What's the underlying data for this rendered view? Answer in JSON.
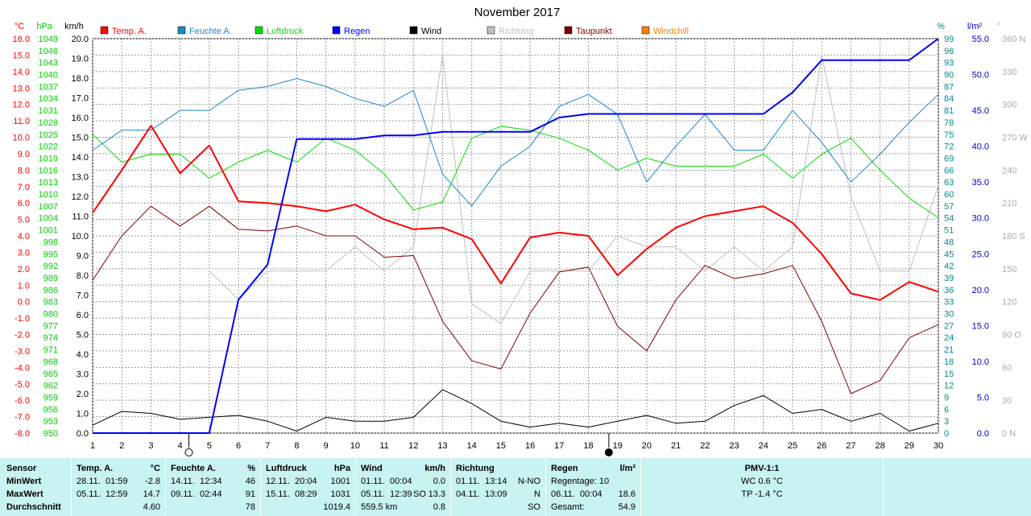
{
  "chart_data": {
    "type": "line",
    "title": "November 2017",
    "x": [
      1,
      2,
      3,
      4,
      5,
      6,
      7,
      8,
      9,
      10,
      11,
      12,
      13,
      14,
      15,
      16,
      17,
      18,
      19,
      20,
      21,
      22,
      23,
      24,
      25,
      26,
      27,
      28,
      29,
      30
    ],
    "xlim": [
      1,
      30
    ],
    "axes": {
      "temp": {
        "unit": "°C",
        "range": [
          -8,
          16
        ],
        "step": 1,
        "color": "#ff0000"
      },
      "pressure": {
        "unit": "hPa",
        "range": [
          950,
          1049
        ],
        "step": 3,
        "color": "#00cc00"
      },
      "wind": {
        "unit": "km/h",
        "range": [
          0,
          20
        ],
        "step": 1,
        "color": "#000000"
      },
      "humidity": {
        "unit": "%",
        "range": [
          0,
          99
        ],
        "step": 3,
        "color": "#008b8b"
      },
      "rain": {
        "unit": "l/m²",
        "range": [
          0,
          55
        ],
        "step": 5,
        "color": "#0000cc"
      },
      "direction": {
        "unit": "°",
        "range": [
          0,
          360
        ],
        "step": 30,
        "color": "#aaaaaa",
        "labels": {
          "0": "0 N",
          "90": "90 O",
          "180": "180 S",
          "270": "270 W",
          "360": "360 N"
        }
      }
    },
    "moon_phases": [
      {
        "day": 4.3,
        "phase": "full"
      },
      {
        "day": 18.7,
        "phase": "new"
      }
    ],
    "legend": [
      {
        "name": "Temp. A.",
        "color": "#ff0000"
      },
      {
        "name": "Feuchte A.",
        "color": "#1e88c8"
      },
      {
        "name": "Luftdruck",
        "color": "#00e000"
      },
      {
        "name": "Regen",
        "color": "#0000ff"
      },
      {
        "name": "Wind",
        "color": "#000000"
      },
      {
        "name": "Richtung",
        "color": "#c0c0c0"
      },
      {
        "name": "Taupunkt",
        "color": "#800000"
      },
      {
        "name": "Windchill",
        "color": "#ff8000"
      }
    ],
    "series": [
      {
        "name": "Richtung",
        "axis": "direction",
        "color": "#c0c0c0",
        "width": 1,
        "values": [
          null,
          null,
          null,
          null,
          148,
          122,
          148,
          148,
          148,
          170,
          148,
          170,
          345,
          118,
          100,
          148,
          148,
          148,
          180,
          170,
          170,
          148,
          170,
          148,
          170,
          345,
          216,
          148,
          148,
          226
        ]
      },
      {
        "name": "Luftdruck",
        "axis": "pressure",
        "color": "#00e000",
        "width": 1,
        "values": [
          1025,
          1018,
          1020,
          1020,
          1014,
          1018,
          1021,
          1018,
          1024,
          1021,
          1015,
          1006,
          1008,
          1024,
          1027,
          1026,
          1024,
          1021,
          1016,
          1019,
          1017,
          1017,
          1017,
          1020,
          1014,
          1020,
          1024,
          1016,
          1009,
          1004
        ]
      },
      {
        "name": "Feuchte A.",
        "axis": "humidity",
        "color": "#1e88c8",
        "width": 1,
        "values": [
          71,
          76,
          76,
          81,
          81,
          86,
          87,
          89,
          87,
          84,
          82,
          86,
          65,
          57,
          67,
          72,
          82,
          85,
          80,
          63,
          72,
          80,
          71,
          71,
          81,
          73,
          63,
          70,
          78,
          85
        ]
      },
      {
        "name": "Taupunkt",
        "axis": "temp",
        "color": "#800000",
        "width": 1,
        "values": [
          1.3,
          4.0,
          5.8,
          4.6,
          5.8,
          4.4,
          4.3,
          4.6,
          4.0,
          4.0,
          2.7,
          2.8,
          -1.2,
          -3.6,
          -4.1,
          -0.7,
          1.8,
          2.1,
          -1.5,
          -3.0,
          0.1,
          2.2,
          1.4,
          1.7,
          2.2,
          -1.2,
          -5.6,
          -4.8,
          -2.2,
          -1.4
        ]
      },
      {
        "name": "Temp. A.",
        "axis": "temp",
        "color": "#ff0000",
        "width": 2,
        "values": [
          5.4,
          8.0,
          10.7,
          7.8,
          9.5,
          6.1,
          6.0,
          5.8,
          5.5,
          5.9,
          5.0,
          4.4,
          4.5,
          3.8,
          1.1,
          3.9,
          4.2,
          4.0,
          1.6,
          3.2,
          4.5,
          5.2,
          5.5,
          5.8,
          4.8,
          2.9,
          0.5,
          0.1,
          1.2,
          0.6
        ]
      },
      {
        "name": "Wind",
        "axis": "wind",
        "color": "#000000",
        "width": 1,
        "values": [
          0.4,
          1.1,
          1.0,
          0.7,
          0.8,
          0.9,
          0.6,
          0.1,
          0.8,
          0.6,
          0.6,
          0.8,
          2.2,
          1.5,
          0.6,
          0.3,
          0.5,
          0.3,
          0.6,
          0.9,
          0.5,
          0.6,
          1.4,
          1.9,
          1.0,
          1.2,
          0.6,
          1.0,
          0.1,
          0.5
        ]
      },
      {
        "name": "Regen",
        "axis": "rain",
        "color": "#0000ff",
        "width": 2,
        "values": [
          0,
          0,
          0,
          0,
          0,
          18.6,
          23.5,
          41.0,
          41.0,
          41.0,
          41.5,
          41.5,
          42.0,
          42.0,
          42.0,
          42.0,
          44.0,
          44.5,
          44.5,
          44.5,
          44.5,
          44.5,
          44.5,
          44.5,
          47.5,
          52.0,
          52.0,
          52.0,
          52.0,
          55.0
        ]
      }
    ]
  },
  "footer": {
    "sensor": {
      "title": "Sensor",
      "rows": [
        "MinWert",
        "MaxWert",
        "Durchschnitt"
      ]
    },
    "temp": {
      "title": "Temp. A.",
      "unit": "°C",
      "min": {
        "date": "28.11.",
        "time": "01:59",
        "value": "-2.8"
      },
      "max": {
        "date": "05.11.",
        "time": "12:59",
        "value": "14.7"
      },
      "avg": "4.60"
    },
    "humidity": {
      "title": "Feuchte A.",
      "unit": "%",
      "min": {
        "date": "14.11.",
        "time": "12:34",
        "value": "46"
      },
      "max": {
        "date": "09.11.",
        "time": "02:44",
        "value": "91"
      },
      "avg": "78"
    },
    "pressure": {
      "title": "Luftdruck",
      "unit": "hPa",
      "min": {
        "date": "12.11.",
        "time": "20:04",
        "value": "1001"
      },
      "max": {
        "date": "15.11.",
        "time": "08:29",
        "value": "1031"
      },
      "avg": "1019.4"
    },
    "wind": {
      "title": "Wind",
      "unit": "km/h",
      "min": {
        "date": "01.11.",
        "time": "00:04",
        "value": "0.0"
      },
      "max": {
        "date": "05.11.",
        "time": "12:39",
        "dir": "SO",
        "value": "13.3"
      },
      "total": "559.5 km",
      "avg": "0.8"
    },
    "direction": {
      "title": "Richtung",
      "min": {
        "date": "01.11.",
        "time": "13:14",
        "value": "N-NO"
      },
      "max": {
        "date": "04.11.",
        "time": "13:09",
        "value": "N"
      },
      "avg": "SO"
    },
    "rain": {
      "title": "Regen",
      "unit": "l/m²",
      "days": "Regentage: 10",
      "max": {
        "date": "06.11.",
        "time": "00:04",
        "value": "18.6"
      },
      "total_label": "Gesamt:",
      "total": "54.9"
    },
    "pmv": {
      "title": "PMV-1:1",
      "wc": "WC 0.6 °C",
      "tp": "TP -1.4 °C"
    }
  }
}
